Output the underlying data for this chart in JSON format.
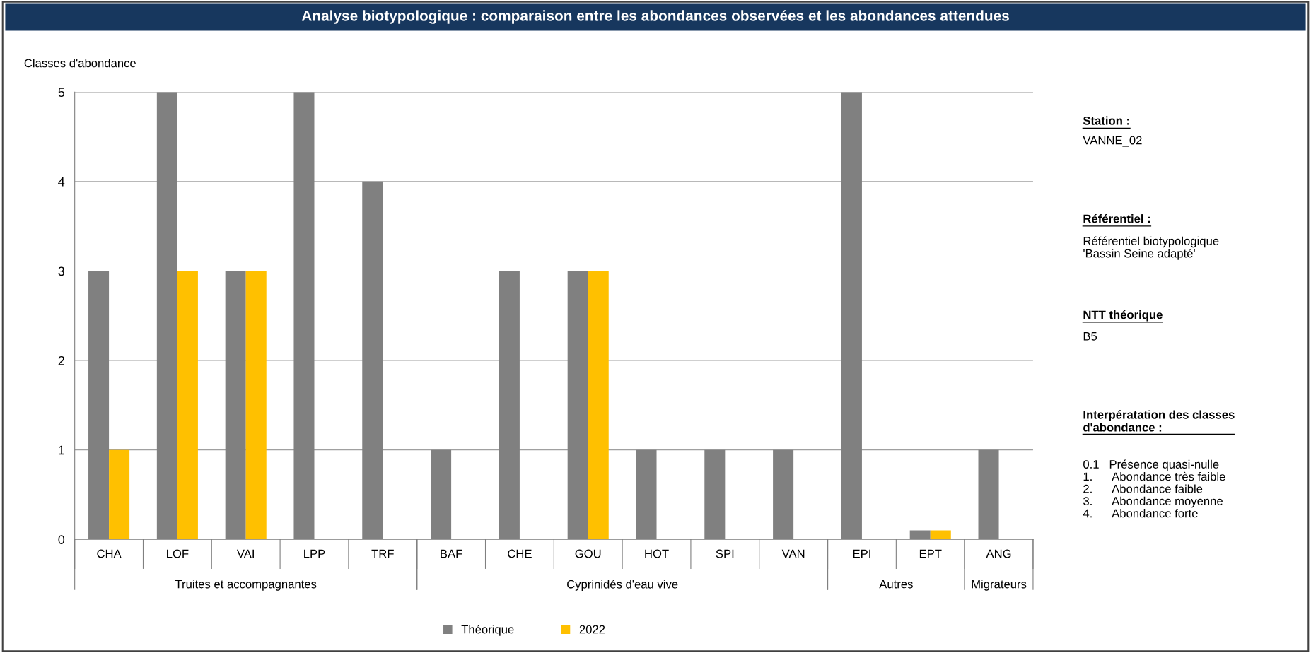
{
  "chart_data": {
    "type": "bar",
    "title": "Analyse biotypologique : comparaison entre les abondances observées et les abondances attendues",
    "ylabel": "Classes d'abondance",
    "categories": [
      "CHA",
      "LOF",
      "VAI",
      "LPP",
      "TRF",
      "BAF",
      "CHE",
      "GOU",
      "HOT",
      "SPI",
      "VAN",
      "EPI",
      "EPT",
      "ANG"
    ],
    "series": [
      {
        "name": "Théorique",
        "color": "#808080",
        "values": [
          3,
          5,
          3,
          5,
          4,
          1,
          3,
          3,
          1,
          1,
          1,
          5,
          0.1,
          1
        ]
      },
      {
        "name": "2022",
        "color": "#ffc000",
        "values": [
          1,
          3,
          3,
          null,
          null,
          null,
          null,
          3,
          null,
          null,
          null,
          null,
          0.1,
          null
        ]
      }
    ],
    "ylim": [
      0,
      5
    ],
    "yticks": [
      0,
      1,
      2,
      3,
      4,
      5
    ],
    "grid": "y",
    "legend": "bottom",
    "annotations": [
      "Truites et accompagnantes",
      "Cyprinidés d'eau vive",
      "Autres",
      "Migrateurs",
      "Station :",
      "VANNE_02",
      "Référentiel :",
      "Référentiel biotypologique\n'Bassin Seine adapté'",
      "NTT théorique",
      "B5",
      "Interpératation des classes\nd'abondance :",
      "0.1   Présence quasi-nulle\n1.      Abondance très faible\n2.      Abondance faible\n3.      Abondance moyenne\n4.      Abondance forte"
    ]
  }
}
